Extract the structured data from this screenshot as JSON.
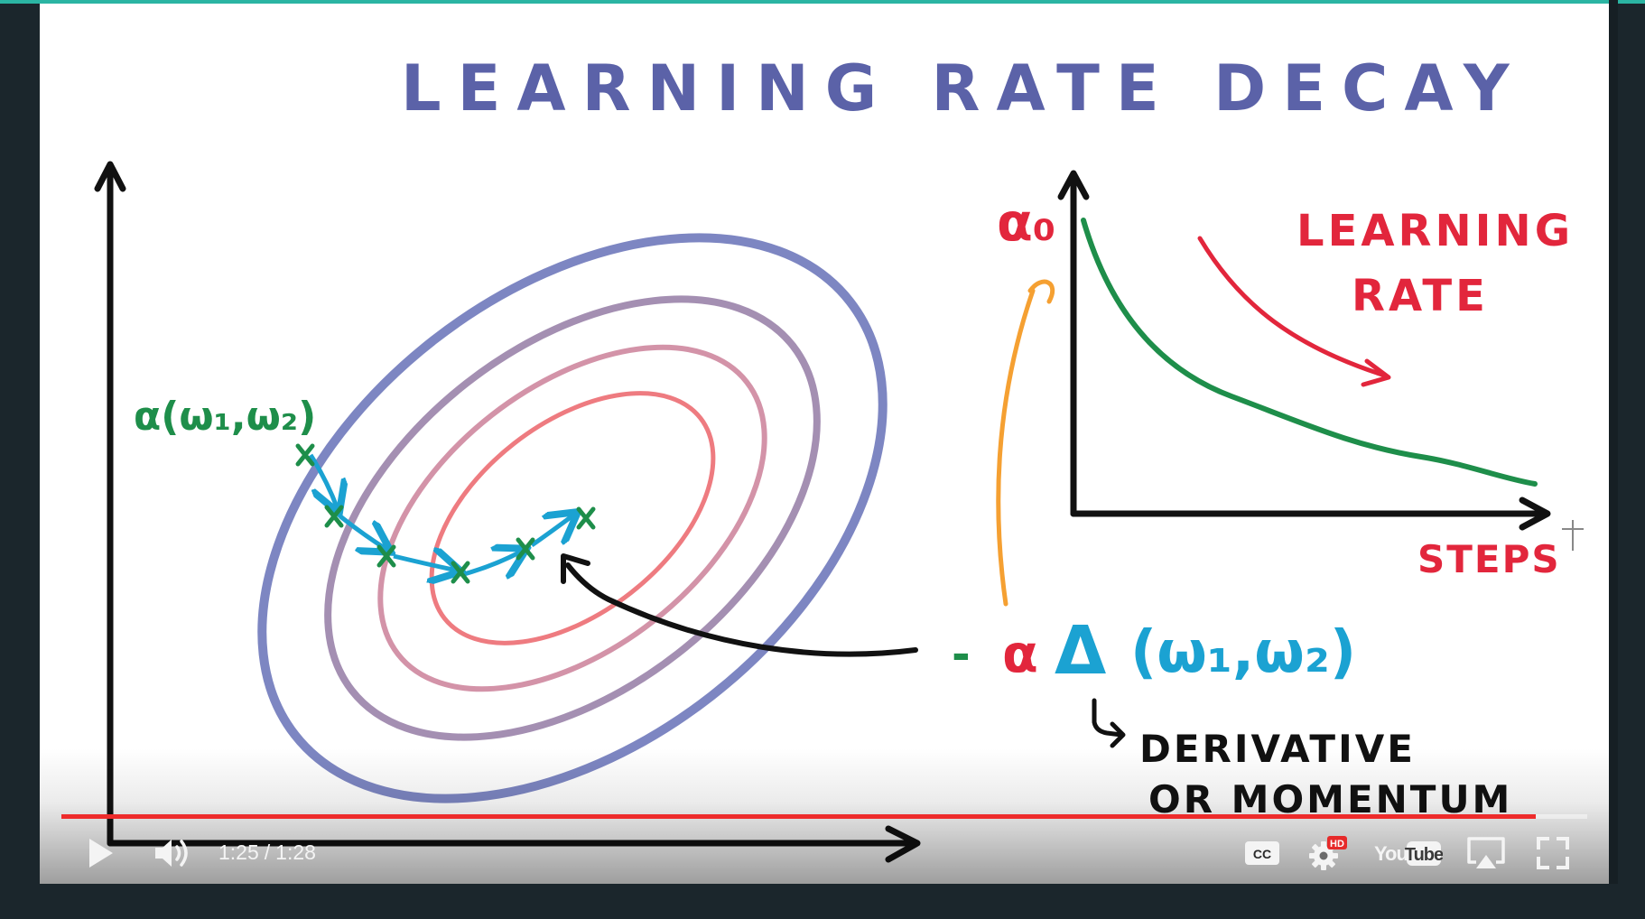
{
  "slide": {
    "title": "LEARNING RATE DECAY",
    "loss_label": "α(ω₁,ω₂)",
    "alpha0": "α₀",
    "curve_label_line1": "LEARNING",
    "curve_label_line2": "RATE",
    "steps_label": "STEPS",
    "update_minus": "-",
    "update_alpha": "α",
    "update_delta": "Δ",
    "update_args": "(ω₁,ω₂)",
    "note_line1": "DERIVATIVE",
    "note_line2": "OR MOMENTUM"
  },
  "player": {
    "current_time": "1:25",
    "separator": "/",
    "duration": "1:28",
    "progress": 0.966,
    "hd_badge": "HD",
    "cc_label": "CC",
    "logo_you": "You",
    "logo_tube": "Tube"
  },
  "icons": {
    "play": "play-icon",
    "volume": "volume-icon",
    "captions": "captions-icon",
    "settings": "gear-icon",
    "logo": "youtube-logo",
    "airplay": "airplay-icon",
    "fullscreen": "fullscreen-icon"
  },
  "colors": {
    "title": "#5b62a8",
    "contour_outer": "#7d86c2",
    "contour_2": "#a48fb2",
    "contour_3": "#d393a8",
    "contour_inner": "#ee7b80",
    "path_steps": "#1ba2d2",
    "markers": "#1e8e4a",
    "decay_curve": "#1e8e4a",
    "red_text": "#e2263c",
    "orange_arrow": "#f5a032",
    "progress": "#ee2b2b"
  }
}
